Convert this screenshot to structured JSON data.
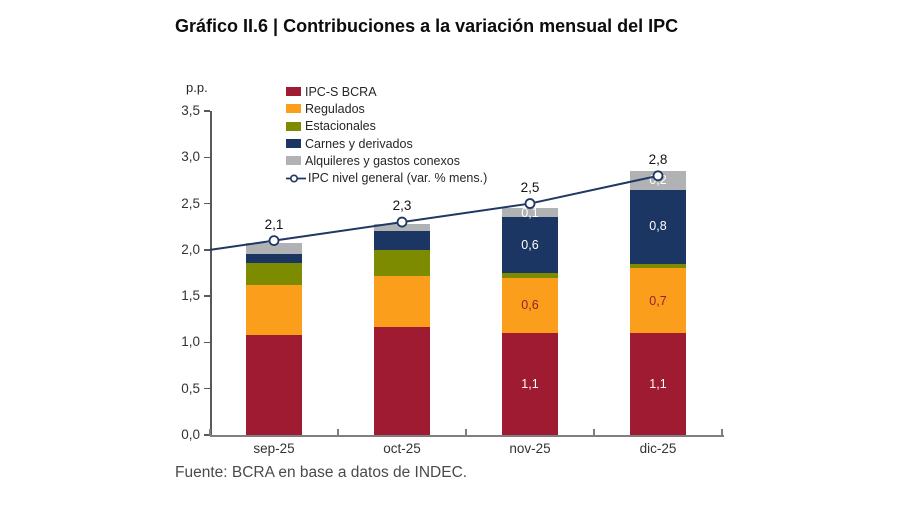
{
  "title": "Gráfico II.6 | Contribuciones a la variación mensual del IPC",
  "y_unit": "p.p.",
  "source": "Fuente: BCRA en base a datos de INDEC.",
  "colors": {
    "maroon": "#9E1B32",
    "orange": "#FA9E1B",
    "olive": "#7D8B00",
    "navy": "#1C3664",
    "gray": "#B0B2B4",
    "line": "#1F3864",
    "marker_fill": "#FFFFFF",
    "axis": "#595959",
    "tick_text": "#333333",
    "label_on_dark": "#FFFFFF",
    "label_on_orange": "#9E1B32"
  },
  "chart_data": {
    "type": "bar",
    "subtype": "stacked-bars-with-line",
    "categories": [
      "sep-25",
      "oct-25",
      "nov-25",
      "dic-25"
    ],
    "series": [
      {
        "name": "IPC-S BCRA",
        "color_key": "maroon",
        "values": [
          1.08,
          1.17,
          1.1,
          1.1
        ],
        "labels": [
          "",
          "",
          "1,1",
          "1,1"
        ],
        "label_color_key": "label_on_dark"
      },
      {
        "name": "Regulados",
        "color_key": "orange",
        "values": [
          0.54,
          0.55,
          0.6,
          0.7
        ],
        "labels": [
          "",
          "",
          "0,6",
          "0,7"
        ],
        "label_color_key": "label_on_orange"
      },
      {
        "name": "Estacionales",
        "color_key": "olive",
        "values": [
          0.24,
          0.28,
          0.05,
          0.05
        ],
        "labels": [
          "",
          "",
          "",
          ""
        ],
        "label_color_key": "label_on_dark"
      },
      {
        "name": "Carnes y derivados",
        "color_key": "navy",
        "values": [
          0.1,
          0.2,
          0.6,
          0.8
        ],
        "labels": [
          "",
          "",
          "0,6",
          "0,8"
        ],
        "label_color_key": "label_on_dark"
      },
      {
        "name": "Alquileres y gastos conexos",
        "color_key": "gray",
        "values": [
          0.11,
          0.08,
          0.1,
          0.2
        ],
        "labels": [
          "",
          "",
          "0,1",
          "0,2"
        ],
        "label_color_key": "label_on_dark"
      }
    ],
    "line_series": {
      "name": "IPC nivel general (var. % mens.)",
      "values": [
        2.1,
        2.3,
        2.5,
        2.8
      ],
      "edge_start_value": 2.0
    },
    "totals_labels": [
      "2,1",
      "2,3",
      "2,5",
      "2,8"
    ],
    "ylim": [
      0,
      3.5
    ],
    "ytick_labels": [
      "0,0",
      "0,5",
      "1,0",
      "1,5",
      "2,0",
      "2,5",
      "3,0",
      "3,5"
    ],
    "ytick_values": [
      0,
      0.5,
      1,
      1.5,
      2,
      2.5,
      3,
      3.5
    ],
    "xlabel": "",
    "ylabel": "p.p.",
    "grid": false,
    "legend_position": "top-inside"
  }
}
